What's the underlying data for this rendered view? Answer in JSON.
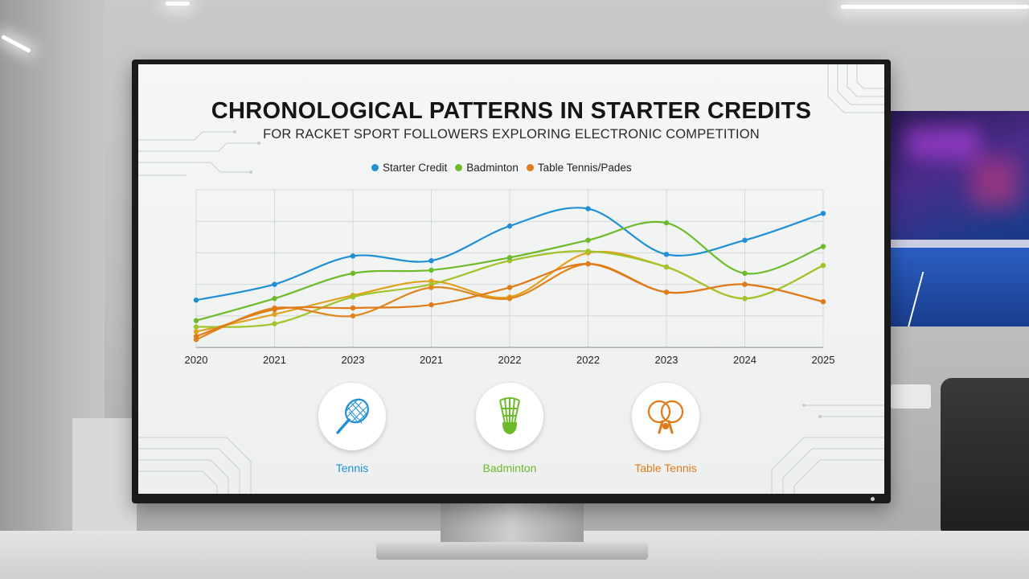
{
  "chart_data": {
    "type": "line",
    "title": "CHRONOLOGICAL PATTERNS IN STARTER CREDITS",
    "subtitle": "FOR RACKET SPORT FOLLOWERS EXPLORING ELECTRONIC COMPETITION",
    "categories": [
      "2020",
      "2021",
      "2023",
      "2021",
      "2022",
      "2022",
      "2023",
      "2024",
      "2025"
    ],
    "legend_position": "top-center",
    "grid": true,
    "series": [
      {
        "name": "Starter Credit",
        "color": "#1f8fd6",
        "values": [
          30,
          40,
          58,
          55,
          77,
          88,
          59,
          68,
          85
        ]
      },
      {
        "name": "Badminton",
        "color": "#6dbb2b",
        "values": [
          17,
          31,
          47,
          49,
          57,
          68,
          79,
          47,
          64
        ]
      },
      {
        "name": "Table Tennis/Pades",
        "color": "#e07b1a",
        "values": [
          7,
          24,
          25,
          27,
          38,
          53,
          35,
          40,
          29
        ]
      },
      {
        "name": "",
        "color": "#e0a21f",
        "values": [
          10,
          21,
          33,
          42,
          32,
          60,
          51,
          31,
          52
        ]
      },
      {
        "name": "",
        "color": "#a0c42a",
        "values": [
          13,
          15,
          32,
          40,
          55,
          61,
          51,
          31,
          52
        ]
      },
      {
        "name": "",
        "color": "#e0841c",
        "values": [
          5,
          25,
          20,
          38,
          31,
          53,
          35,
          40,
          29
        ]
      }
    ],
    "ylim": [
      0,
      100
    ]
  },
  "icons": [
    {
      "label": "Tennis",
      "color": "#1f8fd6",
      "icon": "tennis-racket-icon"
    },
    {
      "label": "Badminton",
      "color": "#6dbb2b",
      "icon": "shuttlecock-icon"
    },
    {
      "label": "Table Tennis",
      "color": "#e07b1a",
      "icon": "ping-pong-paddle-icon"
    }
  ]
}
